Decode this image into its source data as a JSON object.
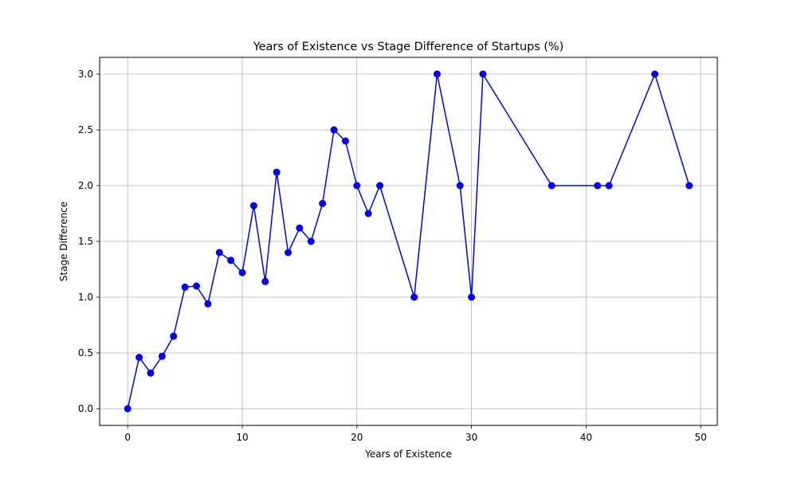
{
  "chart_data": {
    "type": "line",
    "title": "Years of Existence vs Stage Difference of Startups (%)",
    "xlabel": "Years of Existence",
    "ylabel": "Stage Difference",
    "xlim": [
      -2.45,
      51.45
    ],
    "ylim": [
      -0.15,
      3.15
    ],
    "xticks": [
      0,
      10,
      20,
      30,
      40,
      50
    ],
    "yticks": [
      0.0,
      0.5,
      1.0,
      1.5,
      2.0,
      2.5,
      3.0
    ],
    "xtick_labels": [
      "0",
      "10",
      "20",
      "30",
      "40",
      "50"
    ],
    "ytick_labels": [
      "0.0",
      "0.5",
      "1.0",
      "1.5",
      "2.0",
      "2.5",
      "3.0"
    ],
    "grid": true,
    "series": [
      {
        "color": "#0000ff",
        "marker": "circle",
        "x": [
          0,
          1,
          2,
          3,
          4,
          5,
          6,
          7,
          8,
          9,
          10,
          11,
          12,
          13,
          14,
          15,
          16,
          17,
          18,
          19,
          20,
          21,
          22,
          25,
          27,
          29,
          30,
          31,
          37,
          41,
          42,
          46,
          49
        ],
        "y": [
          0.0,
          0.46,
          0.32,
          0.47,
          0.65,
          1.09,
          1.1,
          0.94,
          1.4,
          1.33,
          1.22,
          1.82,
          1.14,
          2.12,
          1.4,
          1.62,
          1.5,
          1.84,
          2.5,
          2.4,
          2.0,
          1.75,
          2.0,
          1.0,
          3.0,
          2.0,
          1.0,
          3.0,
          2.0,
          2.0,
          2.0,
          3.0,
          2.0
        ]
      }
    ]
  }
}
